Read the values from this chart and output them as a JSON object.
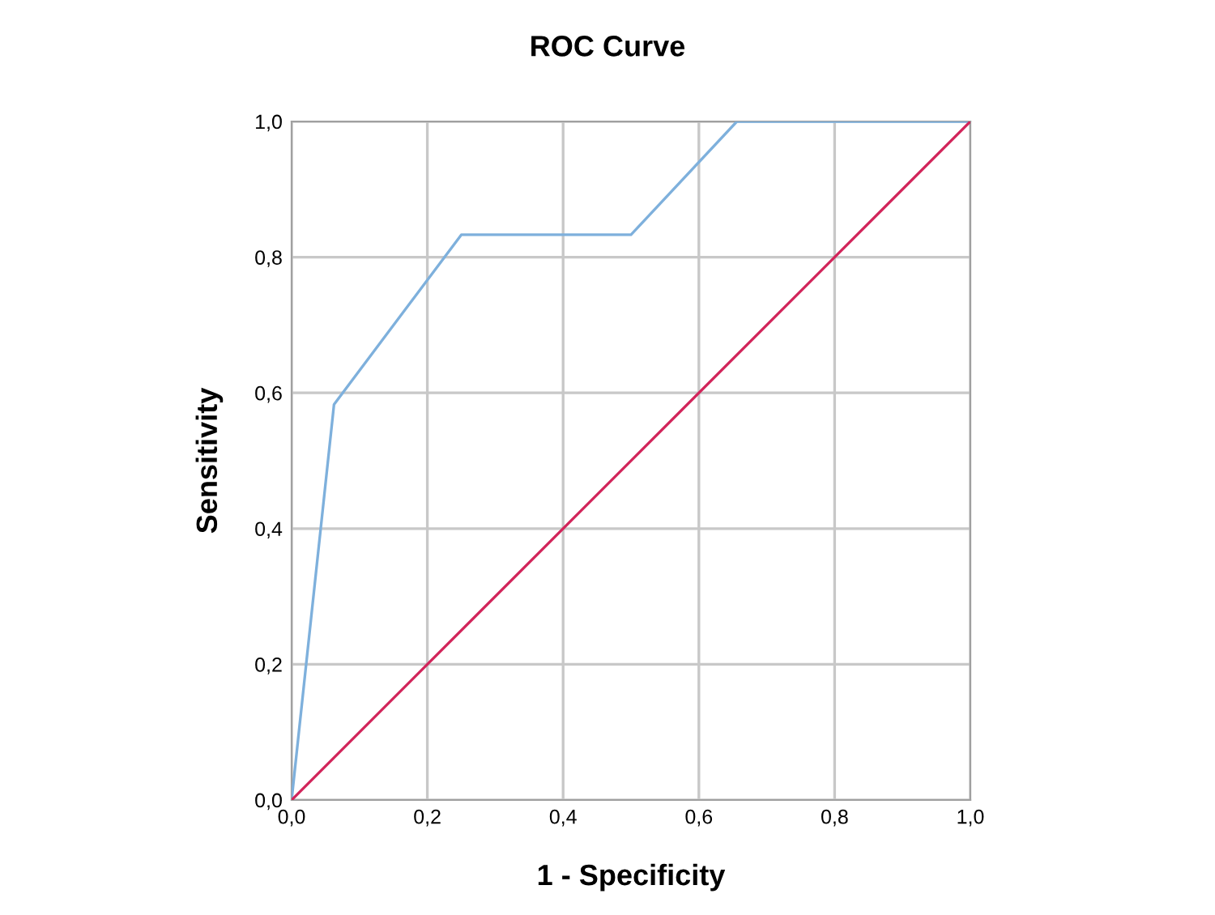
{
  "chart_data": {
    "type": "line",
    "title": "ROC Curve",
    "xlabel": "1 - Specificity",
    "ylabel": "Sensitivity",
    "series": [
      {
        "color": "#7eb0dc",
        "x": [
          0,
          0.0625,
          0.25,
          0.5,
          0.656,
          1.0
        ],
        "values": [
          0,
          0.583,
          0.833,
          0.833,
          1.0,
          1.0
        ]
      },
      {
        "color": "#d2245a",
        "x": [
          0,
          1.0
        ],
        "values": [
          0,
          1.0
        ]
      }
    ],
    "xlim": [
      0,
      1.0
    ],
    "ylim": [
      0,
      1.0
    ],
    "xticks": [
      {
        "value": 0,
        "label": "0,0"
      },
      {
        "value": 0.2,
        "label": "0,2"
      },
      {
        "value": 0.4,
        "label": "0,4"
      },
      {
        "value": 0.6,
        "label": "0,6"
      },
      {
        "value": 0.8,
        "label": "0,8"
      },
      {
        "value": 1.0,
        "label": "1,0"
      }
    ],
    "yticks": [
      {
        "value": 0,
        "label": "0,0"
      },
      {
        "value": 0.2,
        "label": "0,2"
      },
      {
        "value": 0.4,
        "label": "0,4"
      },
      {
        "value": 0.6,
        "label": "0,6"
      },
      {
        "value": 0.8,
        "label": "0,8"
      },
      {
        "value": 1.0,
        "label": "1,0"
      }
    ],
    "grid": true
  }
}
